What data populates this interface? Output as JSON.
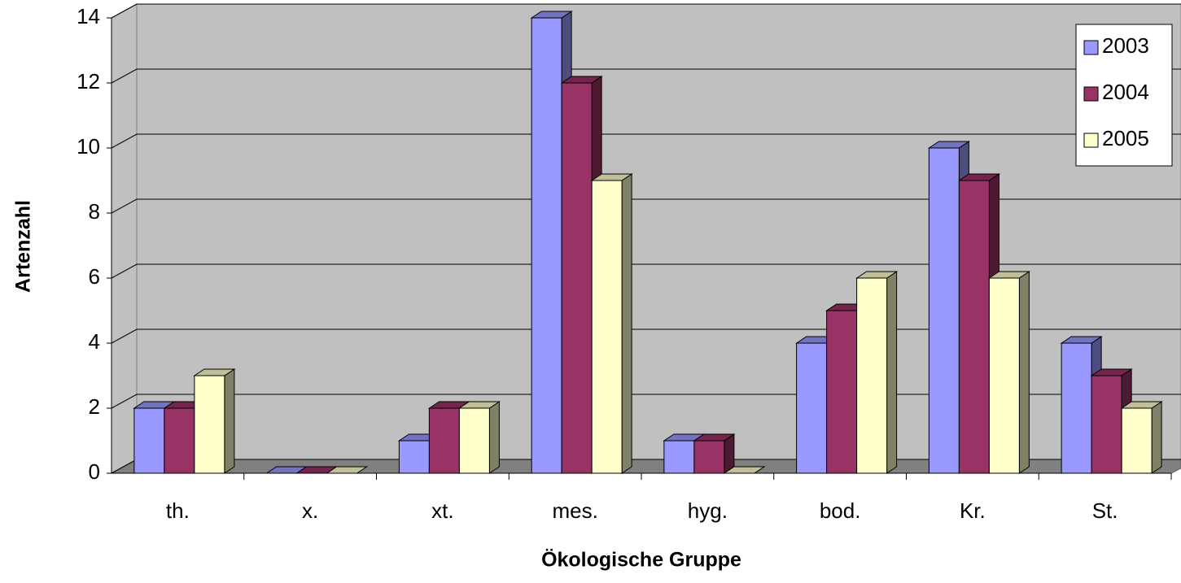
{
  "chart_data": {
    "type": "bar3d",
    "xlabel": "Ökologische Gruppe",
    "ylabel": "Artenzahl",
    "categories": [
      "th.",
      "x.",
      "xt.",
      "mes.",
      "hyg.",
      "bod.",
      "Kr.",
      "St."
    ],
    "series": [
      {
        "name": "2003",
        "color": "#9999ff",
        "values": [
          2,
          0,
          1,
          14,
          1,
          4,
          10,
          4
        ]
      },
      {
        "name": "2004",
        "color": "#993366",
        "values": [
          2,
          0,
          2,
          12,
          1,
          5,
          9,
          3
        ]
      },
      {
        "name": "2005",
        "color": "#ffffcc",
        "values": [
          3,
          0,
          2,
          9,
          0,
          6,
          6,
          2
        ]
      }
    ],
    "ylim": [
      0,
      14
    ],
    "yticks": [
      0,
      2,
      4,
      6,
      8,
      10,
      12,
      14
    ],
    "grid": true,
    "legend": "upper right"
  }
}
